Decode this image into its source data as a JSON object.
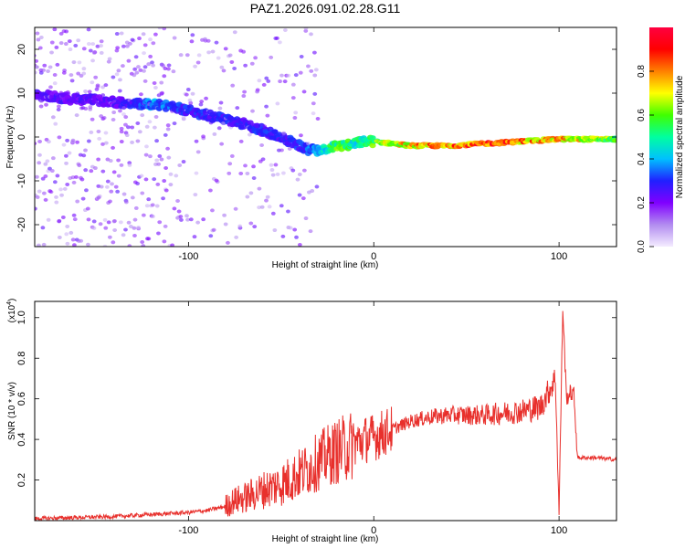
{
  "title": "PAZ1.2026.091.02.28.G11",
  "chart_data": [
    {
      "type": "heatmap",
      "name": "spectrogram",
      "xlabel": "Height of straight line (km)",
      "ylabel": "Frequency (Hz)",
      "xlim": [
        -183,
        131
      ],
      "ylim": [
        -25,
        25
      ],
      "xticks": [
        -100,
        0,
        100
      ],
      "yticks": [
        -20,
        -10,
        0,
        10,
        20
      ],
      "colorbar": {
        "label": "Normalized spectral amplitude",
        "range": [
          0,
          1
        ],
        "ticks": [
          0.0,
          0.2,
          0.4,
          0.6,
          0.8
        ],
        "colormap": [
          "#f4ecff",
          "#b28cf0",
          "#8000ff",
          "#2020ff",
          "#00c0ff",
          "#00ffa0",
          "#40ff00",
          "#ffff00",
          "#ff8000",
          "#ff0000",
          "#ff0040"
        ]
      },
      "ridge": {
        "x": [
          -180,
          -170,
          -160,
          -150,
          -140,
          -130,
          -120,
          -110,
          -100,
          -90,
          -80,
          -70,
          -60,
          -50,
          -40,
          -35,
          -30,
          -25,
          -20,
          -15,
          -10,
          -5,
          0,
          10,
          20,
          40,
          60,
          80,
          100,
          120,
          131
        ],
        "freq": [
          9.5,
          9.0,
          8.5,
          8.5,
          8.0,
          7.5,
          7.5,
          7.0,
          6.0,
          5.0,
          4.0,
          3.0,
          1.5,
          0.0,
          -2.0,
          -3.0,
          -3.0,
          -2.5,
          -2.0,
          -2.0,
          -1.5,
          -1.0,
          -1.0,
          -1.5,
          -2.0,
          -2.0,
          -1.5,
          -1.0,
          -0.5,
          -0.5,
          -0.5
        ],
        "amplitude": [
          0.25,
          0.25,
          0.25,
          0.25,
          0.25,
          0.3,
          0.4,
          0.35,
          0.3,
          0.3,
          0.3,
          0.3,
          0.3,
          0.3,
          0.3,
          0.35,
          0.4,
          0.5,
          0.6,
          0.6,
          0.5,
          0.55,
          0.6,
          0.7,
          0.8,
          0.85,
          0.9,
          0.85,
          0.8,
          0.7,
          0.6
        ]
      }
    },
    {
      "type": "line",
      "name": "snr",
      "color": "#e8302c",
      "xlabel": "Height of straight line (km)",
      "ylabel": "SNR (10 * v/v)",
      "multiplier": "(x10",
      "multiplier_exp": "4",
      "multiplier_close": ")",
      "xlim": [
        -183,
        131
      ],
      "ylim": [
        0,
        1.08
      ],
      "xticks": [
        -100,
        0,
        100
      ],
      "yticks": [
        0.2,
        0.4,
        0.6,
        0.8,
        1.0
      ],
      "x": [
        -183,
        -160,
        -140,
        -120,
        -100,
        -90,
        -80,
        -75,
        -70,
        -60,
        -50,
        -40,
        -30,
        -25,
        -20,
        -15,
        -10,
        -5,
        0,
        5,
        10,
        20,
        30,
        40,
        50,
        60,
        70,
        80,
        90,
        98,
        100,
        102,
        104,
        106,
        108,
        110,
        120,
        131
      ],
      "y": [
        0.01,
        0.015,
        0.02,
        0.03,
        0.04,
        0.05,
        0.07,
        0.1,
        0.11,
        0.15,
        0.18,
        0.23,
        0.29,
        0.32,
        0.34,
        0.36,
        0.38,
        0.4,
        0.41,
        0.43,
        0.45,
        0.49,
        0.51,
        0.52,
        0.52,
        0.52,
        0.53,
        0.54,
        0.56,
        0.7,
        0.04,
        1.05,
        0.6,
        0.63,
        0.62,
        0.31,
        0.31,
        0.3
      ]
    }
  ]
}
